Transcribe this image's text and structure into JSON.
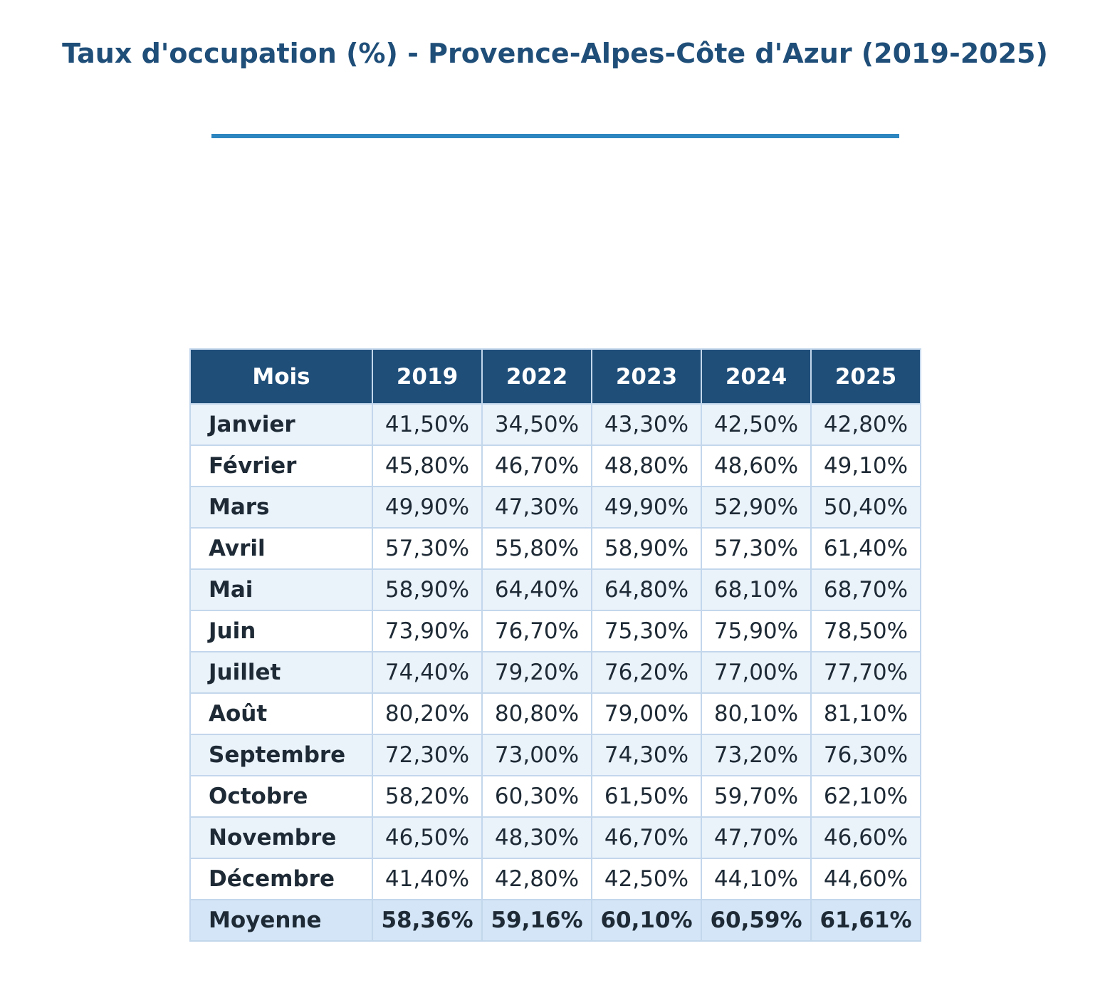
{
  "title": "Taux d'occupation (%) - Provence-Alpes-Côte d'Azur (2019-2025)",
  "colors": {
    "title": "#1f4e79",
    "rule": "#2e86c1",
    "header_bg": "#1f4e79",
    "header_text": "#ffffff",
    "row_even": "#eaf2fa",
    "row_odd": "#ffffff",
    "average_row": "#d3e5f6",
    "grid_border": "#c3d7ec",
    "text": "#1e2a35"
  },
  "chart_data": {
    "type": "table",
    "title": "Taux d'occupation (%) - Provence-Alpes-Côte d'Azur (2019-2025)",
    "columns": [
      "Mois",
      "2019",
      "2022",
      "2023",
      "2024",
      "2025"
    ],
    "rows": [
      {
        "month": "Janvier",
        "values": [
          "41,50%",
          "34,50%",
          "43,30%",
          "42,50%",
          "42,80%"
        ]
      },
      {
        "month": "Février",
        "values": [
          "45,80%",
          "46,70%",
          "48,80%",
          "48,60%",
          "49,10%"
        ]
      },
      {
        "month": "Mars",
        "values": [
          "49,90%",
          "47,30%",
          "49,90%",
          "52,90%",
          "50,40%"
        ]
      },
      {
        "month": "Avril",
        "values": [
          "57,30%",
          "55,80%",
          "58,90%",
          "57,30%",
          "61,40%"
        ]
      },
      {
        "month": "Mai",
        "values": [
          "58,90%",
          "64,40%",
          "64,80%",
          "68,10%",
          "68,70%"
        ]
      },
      {
        "month": "Juin",
        "values": [
          "73,90%",
          "76,70%",
          "75,30%",
          "75,90%",
          "78,50%"
        ]
      },
      {
        "month": "Juillet",
        "values": [
          "74,40%",
          "79,20%",
          "76,20%",
          "77,00%",
          "77,70%"
        ]
      },
      {
        "month": "Août",
        "values": [
          "80,20%",
          "80,80%",
          "79,00%",
          "80,10%",
          "81,10%"
        ]
      },
      {
        "month": "Septembre",
        "values": [
          "72,30%",
          "73,00%",
          "74,30%",
          "73,20%",
          "76,30%"
        ]
      },
      {
        "month": "Octobre",
        "values": [
          "58,20%",
          "60,30%",
          "61,50%",
          "59,70%",
          "62,10%"
        ]
      },
      {
        "month": "Novembre",
        "values": [
          "46,50%",
          "48,30%",
          "46,70%",
          "47,70%",
          "46,60%"
        ]
      },
      {
        "month": "Décembre",
        "values": [
          "41,40%",
          "42,80%",
          "42,50%",
          "44,10%",
          "44,60%"
        ]
      }
    ],
    "average": {
      "month": "Moyenne",
      "values": [
        "58,36%",
        "59,16%",
        "60,10%",
        "60,59%",
        "61,61%"
      ]
    }
  }
}
